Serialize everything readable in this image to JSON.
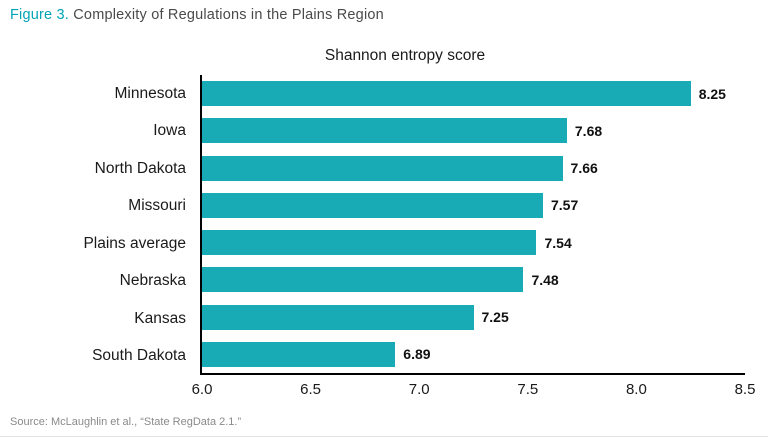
{
  "figure": {
    "label": "Figure 3.",
    "title": " Complexity of Regulations in the Plains Region"
  },
  "chart_data": {
    "type": "bar",
    "orientation": "horizontal",
    "title": "Shannon entropy score",
    "categories": [
      "Minnesota",
      "Iowa",
      "North Dakota",
      "Missouri",
      "Plains average",
      "Nebraska",
      "Kansas",
      "South Dakota"
    ],
    "values": [
      8.25,
      7.68,
      7.66,
      7.57,
      7.54,
      7.48,
      7.25,
      6.89
    ],
    "xlim": [
      6.0,
      8.5
    ],
    "xticks": [
      "6.0",
      "6.5",
      "7.0",
      "7.5",
      "8.0",
      "8.5"
    ],
    "xlabel": "",
    "ylabel": "",
    "grid": false,
    "legend": "none",
    "bar_color": "#18aab5"
  },
  "footer": {
    "source": "Source: McLaughlin et al., “State RegData 2.1.”"
  }
}
